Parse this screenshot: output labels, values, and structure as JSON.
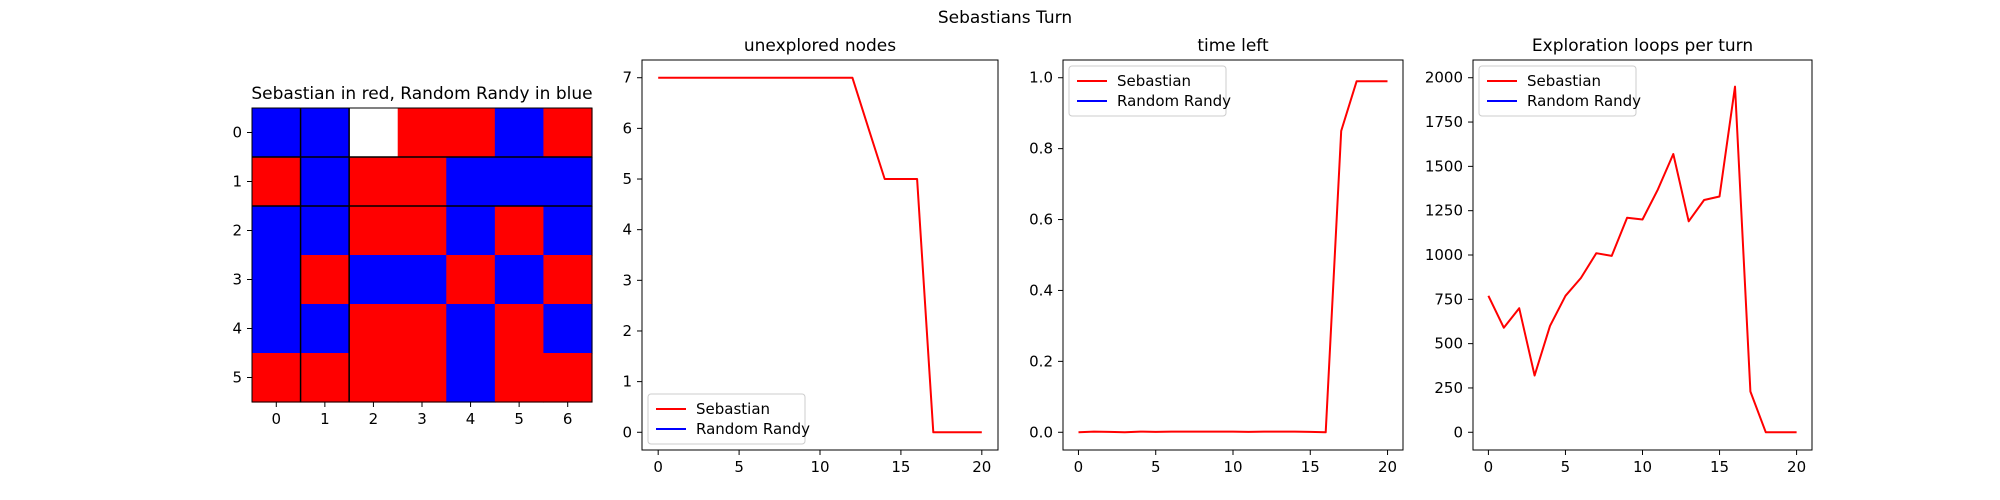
{
  "figure": {
    "title": "Sebastians Turn"
  },
  "chart_data": [
    {
      "type": "heatmap",
      "title": "Sebastian in red, Random Randy in blue",
      "x_ticks": [
        "0",
        "1",
        "2",
        "3",
        "4",
        "5",
        "6"
      ],
      "y_ticks": [
        "0",
        "1",
        "2",
        "3",
        "4",
        "5"
      ],
      "colors": {
        "R": "#ff0000",
        "B": "#0000ff",
        "W": "#ffffff"
      },
      "cells": [
        [
          "B",
          "B",
          "W",
          "R",
          "R",
          "B",
          "R"
        ],
        [
          "R",
          "B",
          "R",
          "R",
          "B",
          "B",
          "B"
        ],
        [
          "B",
          "B",
          "R",
          "R",
          "B",
          "R",
          "B"
        ],
        [
          "B",
          "R",
          "B",
          "B",
          "R",
          "B",
          "R"
        ],
        [
          "B",
          "B",
          "R",
          "R",
          "B",
          "R",
          "B"
        ],
        [
          "R",
          "R",
          "R",
          "R",
          "B",
          "R",
          "R"
        ]
      ],
      "separators": {
        "vertical_cols": [
          0.5,
          1.5
        ],
        "horizontal_rows": [
          0.5,
          1.5
        ]
      }
    },
    {
      "type": "line",
      "title": "unexplored nodes",
      "xlim": [
        0,
        20
      ],
      "ylim": [
        0,
        7
      ],
      "x_ticks": [
        0,
        5,
        10,
        15,
        20
      ],
      "y_ticks": [
        0,
        1,
        2,
        3,
        4,
        5,
        6,
        7
      ],
      "legend_position": "lower-left",
      "series": [
        {
          "name": "Sebastian",
          "color": "#ff0000",
          "x": [
            0,
            1,
            2,
            3,
            4,
            5,
            6,
            7,
            8,
            9,
            10,
            11,
            12,
            13,
            14,
            15,
            16,
            17,
            18,
            19,
            20
          ],
          "y": [
            7,
            7,
            7,
            7,
            7,
            7,
            7,
            7,
            7,
            7,
            7,
            7,
            7,
            6,
            5,
            5,
            5,
            0,
            0,
            0,
            0
          ]
        },
        {
          "name": "Random Randy",
          "color": "#0000ff",
          "x": [],
          "y": []
        }
      ]
    },
    {
      "type": "line",
      "title": "time left",
      "xlim": [
        0,
        20
      ],
      "ylim": [
        0,
        1.0
      ],
      "x_ticks": [
        0,
        5,
        10,
        15,
        20
      ],
      "y_ticks": [
        "0.0",
        "0.2",
        "0.4",
        "0.6",
        "0.8",
        "1.0"
      ],
      "legend_position": "top-left",
      "series": [
        {
          "name": "Sebastian",
          "color": "#ff0000",
          "x": [
            0,
            1,
            2,
            3,
            4,
            5,
            6,
            7,
            8,
            9,
            10,
            11,
            12,
            13,
            14,
            15,
            16,
            17,
            18,
            19,
            20
          ],
          "y": [
            0.0,
            0.002,
            0.001,
            0.0,
            0.002,
            0.001,
            0.002,
            0.002,
            0.002,
            0.002,
            0.002,
            0.001,
            0.002,
            0.002,
            0.002,
            0.001,
            0.0,
            0.85,
            0.99,
            0.99,
            0.99
          ]
        },
        {
          "name": "Random Randy",
          "color": "#0000ff",
          "x": [],
          "y": []
        }
      ]
    },
    {
      "type": "line",
      "title": "Exploration loops per turn",
      "xlim": [
        0,
        20
      ],
      "ylim": [
        0,
        2000
      ],
      "x_ticks": [
        0,
        5,
        10,
        15,
        20
      ],
      "y_ticks": [
        0,
        250,
        500,
        750,
        1000,
        1250,
        1500,
        1750,
        2000
      ],
      "legend_position": "top-left",
      "series": [
        {
          "name": "Sebastian",
          "color": "#ff0000",
          "x": [
            0,
            1,
            2,
            3,
            4,
            5,
            6,
            7,
            8,
            9,
            10,
            11,
            12,
            13,
            14,
            15,
            16,
            17,
            18,
            19,
            20
          ],
          "y": [
            770,
            590,
            700,
            320,
            600,
            770,
            870,
            1010,
            995,
            1210,
            1200,
            1370,
            1570,
            1190,
            1310,
            1330,
            1950,
            230,
            0,
            0,
            0
          ]
        },
        {
          "name": "Random Randy",
          "color": "#0000ff",
          "x": [],
          "y": []
        }
      ]
    }
  ]
}
